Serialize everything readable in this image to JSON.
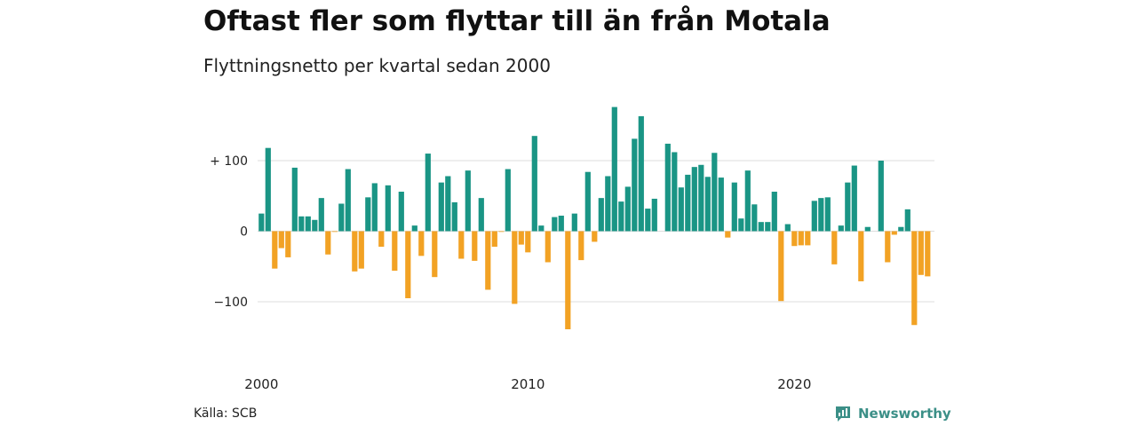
{
  "title": "Oftast fler som flyttar till än från Motala",
  "subtitle": "Flyttningsnetto per kvartal sedan 2000",
  "source": "Källa: SCB",
  "brand": {
    "name": "Newsworthy",
    "icon": "newsworthy-logo-icon",
    "color": "#3b8f87"
  },
  "chart_data": {
    "type": "bar",
    "title": "Oftast fler som flyttar till än från Motala",
    "subtitle": "Flyttningsnetto per kvartal sedan 2000",
    "xlabel": "",
    "ylabel": "",
    "ylim": [
      -140,
      180
    ],
    "y_ticks": [
      {
        "value": 100,
        "label": "+ 100"
      },
      {
        "value": 0,
        "label": "0"
      },
      {
        "value": -100,
        "label": "−100"
      }
    ],
    "x_tick_labels": [
      "2000",
      "2010",
      "2020"
    ],
    "grid": "horizontal",
    "colors": {
      "positive": "#1a9585",
      "negative": "#f2a224",
      "grid": "#dddddd"
    },
    "categories": [
      "2000K1",
      "2000K2",
      "2000K3",
      "2000K4",
      "2001K1",
      "2001K2",
      "2001K3",
      "2001K4",
      "2002K1",
      "2002K2",
      "2002K3",
      "2002K4",
      "2003K1",
      "2003K2",
      "2003K3",
      "2003K4",
      "2004K1",
      "2004K2",
      "2004K3",
      "2004K4",
      "2005K1",
      "2005K2",
      "2005K3",
      "2005K4",
      "2006K1",
      "2006K2",
      "2006K3",
      "2006K4",
      "2007K1",
      "2007K2",
      "2007K3",
      "2007K4",
      "2008K1",
      "2008K2",
      "2008K3",
      "2008K4",
      "2009K1",
      "2009K2",
      "2009K3",
      "2009K4",
      "2010K1",
      "2010K2",
      "2010K3",
      "2010K4",
      "2011K1",
      "2011K2",
      "2011K3",
      "2011K4",
      "2012K1",
      "2012K2",
      "2012K3",
      "2012K4",
      "2013K1",
      "2013K2",
      "2013K3",
      "2013K4",
      "2014K1",
      "2014K2",
      "2014K3",
      "2014K4",
      "2015K1",
      "2015K2",
      "2015K3",
      "2015K4",
      "2016K1",
      "2016K2",
      "2016K3",
      "2016K4",
      "2017K1",
      "2017K2",
      "2017K3",
      "2017K4",
      "2018K1",
      "2018K2",
      "2018K3",
      "2018K4",
      "2019K1",
      "2019K2",
      "2019K3",
      "2019K4",
      "2020K1",
      "2020K2",
      "2020K3",
      "2020K4",
      "2021K1",
      "2021K2",
      "2021K3",
      "2021K4",
      "2022K1",
      "2022K2",
      "2022K3",
      "2022K4",
      "2023K1",
      "2023K2",
      "2023K3",
      "2023K4",
      "2024K1",
      "2024K2",
      "2024K3",
      "2024K4",
      "2025K1"
    ],
    "values": [
      25,
      118,
      -53,
      -24,
      -37,
      90,
      21,
      21,
      16,
      47,
      -33,
      -1,
      39,
      88,
      -57,
      -53,
      48,
      68,
      -22,
      65,
      -56,
      56,
      -95,
      8,
      -35,
      110,
      -65,
      69,
      78,
      41,
      -39,
      86,
      -42,
      47,
      -83,
      -22,
      -1,
      88,
      -103,
      -19,
      -30,
      135,
      8,
      -44,
      20,
      22,
      -139,
      25,
      -41,
      84,
      -15,
      47,
      78,
      176,
      42,
      63,
      131,
      163,
      32,
      46,
      0,
      124,
      112,
      62,
      80,
      91,
      94,
      77,
      111,
      76,
      -9,
      69,
      18,
      86,
      38,
      13,
      13,
      56,
      -99,
      10,
      -21,
      -20,
      -20,
      43,
      47,
      48,
      -47,
      8,
      69,
      93,
      -71,
      6,
      0,
      100,
      -44,
      -5,
      6,
      31,
      -133,
      -62,
      -64
    ]
  }
}
